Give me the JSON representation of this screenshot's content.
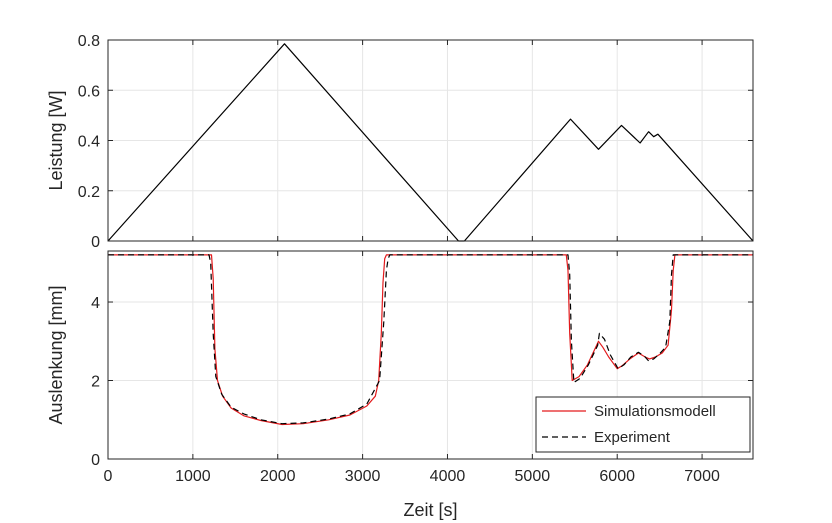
{
  "chart_data": [
    {
      "type": "line",
      "title": "",
      "xlabel": "",
      "ylabel": "Leistung [W]",
      "xlim": [
        0,
        7600
      ],
      "ylim": [
        0,
        0.8
      ],
      "xticks": [
        0,
        1000,
        2000,
        3000,
        4000,
        5000,
        6000,
        7000
      ],
      "yticks": [
        0,
        0.2,
        0.4,
        0.6,
        0.8
      ],
      "ytick_labels": [
        "0",
        "0.2",
        "0.4",
        "0.6",
        "0.8"
      ],
      "grid": true,
      "legend": null,
      "series": [
        {
          "color": "#000000",
          "style": "solid",
          "x": [
            0,
            2080,
            4130,
            4200,
            5450,
            5780,
            6050,
            6270,
            6370,
            6430,
            6480,
            7600
          ],
          "y": [
            0,
            0.785,
            0,
            0,
            0.485,
            0.365,
            0.46,
            0.39,
            0.435,
            0.415,
            0.425,
            0
          ]
        }
      ]
    },
    {
      "type": "line",
      "title": "",
      "xlabel": "Zeit [s]",
      "ylabel": "Auslenkung [mm]",
      "xlim": [
        0,
        7600
      ],
      "ylim": [
        0,
        5.3
      ],
      "xticks": [
        0,
        1000,
        2000,
        3000,
        4000,
        5000,
        6000,
        7000
      ],
      "xtick_labels": [
        "0",
        "1000",
        "2000",
        "3000",
        "4000",
        "5000",
        "6000",
        "7000"
      ],
      "yticks": [
        0,
        2,
        4
      ],
      "ytick_labels": [
        "0",
        "2",
        "4"
      ],
      "grid": true,
      "legend": "bottom-right",
      "series": [
        {
          "name": "Simulationsmodell",
          "color": "#e31a1c",
          "style": "solid",
          "x": [
            0,
            1220,
            1240,
            1260,
            1290,
            1350,
            1450,
            1600,
            1800,
            2050,
            2300,
            2600,
            2850,
            3050,
            3150,
            3190,
            3220,
            3240,
            3260,
            3280,
            5400,
            5420,
            5440,
            5470,
            5550,
            5650,
            5780,
            5830,
            5900,
            6000,
            6060,
            6150,
            6250,
            6330,
            6380,
            6450,
            6530,
            6600,
            6640,
            6660,
            6680,
            7600
          ],
          "y": [
            5.2,
            5.2,
            4.6,
            2.8,
            2.0,
            1.6,
            1.3,
            1.1,
            0.98,
            0.88,
            0.9,
            1.0,
            1.12,
            1.35,
            1.6,
            2.0,
            3.2,
            4.5,
            5.1,
            5.2,
            5.2,
            4.8,
            3.2,
            2.0,
            2.1,
            2.4,
            3.0,
            2.85,
            2.6,
            2.3,
            2.38,
            2.55,
            2.7,
            2.6,
            2.55,
            2.6,
            2.7,
            2.9,
            3.8,
            4.8,
            5.2,
            5.2
          ]
        },
        {
          "name": "Experiment",
          "color": "#000000",
          "style": "dashed",
          "x": [
            0,
            1190,
            1210,
            1240,
            1270,
            1340,
            1450,
            1600,
            1800,
            2050,
            2300,
            2600,
            2850,
            3050,
            3200,
            3250,
            3280,
            3300,
            3320,
            5420,
            5440,
            5460,
            5490,
            5560,
            5660,
            5770,
            5790,
            5850,
            5920,
            6010,
            6080,
            6160,
            6250,
            6320,
            6370,
            6430,
            6500,
            6570,
            6620,
            6640,
            6660,
            7600
          ],
          "y": [
            5.2,
            5.2,
            5.0,
            3.2,
            2.1,
            1.65,
            1.32,
            1.15,
            1.0,
            0.9,
            0.92,
            1.02,
            1.15,
            1.4,
            2.0,
            3.5,
            4.8,
            5.1,
            5.2,
            5.2,
            4.7,
            3.0,
            1.95,
            2.05,
            2.4,
            2.9,
            3.2,
            3.05,
            2.65,
            2.3,
            2.4,
            2.6,
            2.72,
            2.62,
            2.5,
            2.55,
            2.68,
            2.85,
            3.5,
            4.7,
            5.2,
            5.2
          ]
        }
      ]
    }
  ]
}
